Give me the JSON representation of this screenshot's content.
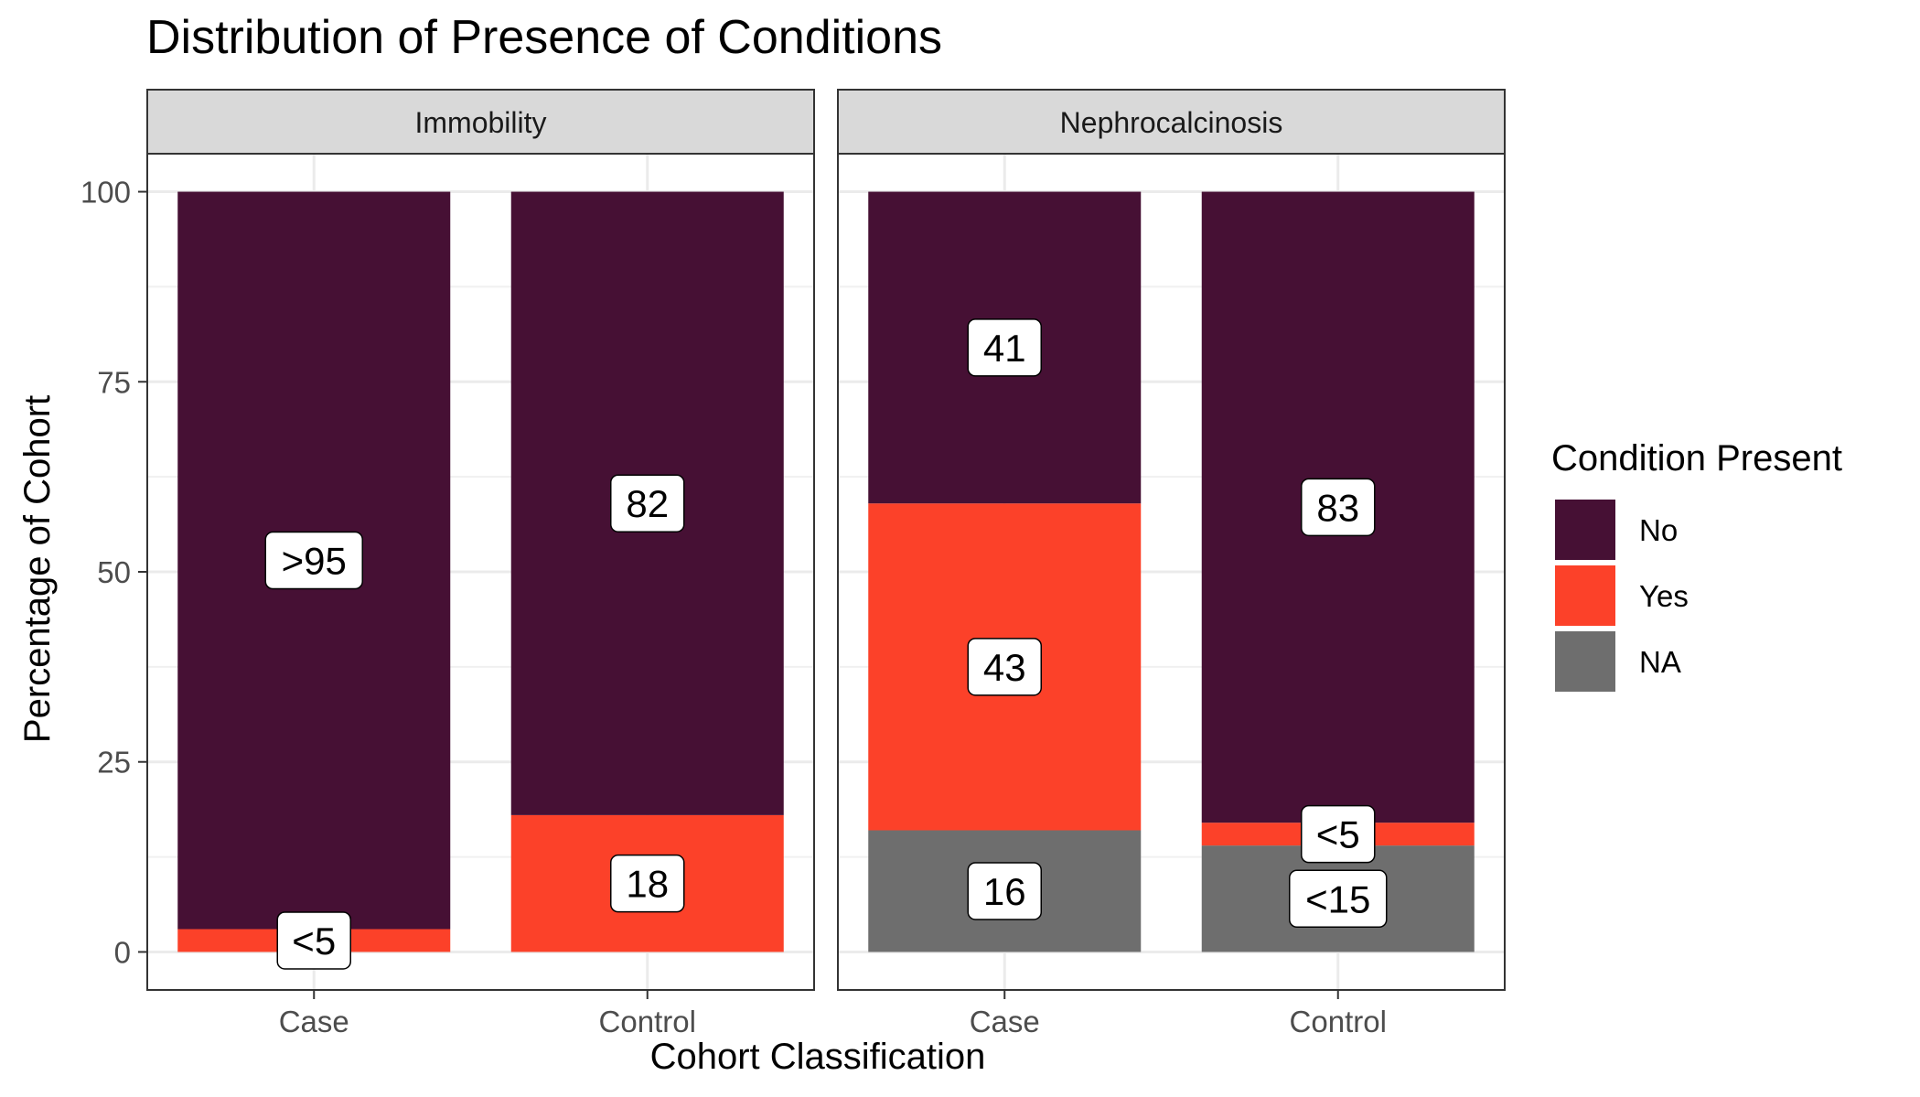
{
  "chart_data": {
    "type": "bar",
    "stacked": true,
    "title": "Distribution of Presence of Conditions",
    "xlabel": "Cohort Classification",
    "ylabel": "Percentage of Cohort",
    "ylim": [
      -5,
      105
    ],
    "yticks": [
      0,
      25,
      50,
      75,
      100
    ],
    "grid": true,
    "facets": [
      "Immobility",
      "Nephrocalcinosis"
    ],
    "categories": [
      "Case",
      "Control"
    ],
    "legend": {
      "title": "Condition Present",
      "position": "right",
      "entries": [
        {
          "label": "No",
          "color": "#461034"
        },
        {
          "label": "Yes",
          "color": "#FC4129"
        },
        {
          "label": "NA",
          "color": "#6E6E6E"
        }
      ]
    },
    "panels": [
      {
        "facet": "Immobility",
        "bars": [
          {
            "category": "Case",
            "segments": [
              {
                "group": "NA",
                "value": 0,
                "label": ""
              },
              {
                "group": "Yes",
                "value": 3,
                "label": "<5"
              },
              {
                "group": "No",
                "value": 97,
                "label": ">95"
              }
            ]
          },
          {
            "category": "Control",
            "segments": [
              {
                "group": "NA",
                "value": 0,
                "label": ""
              },
              {
                "group": "Yes",
                "value": 18,
                "label": "18"
              },
              {
                "group": "No",
                "value": 82,
                "label": "82"
              }
            ]
          }
        ]
      },
      {
        "facet": "Nephrocalcinosis",
        "bars": [
          {
            "category": "Case",
            "segments": [
              {
                "group": "NA",
                "value": 16,
                "label": "16"
              },
              {
                "group": "Yes",
                "value": 43,
                "label": "43"
              },
              {
                "group": "No",
                "value": 41,
                "label": "41"
              }
            ]
          },
          {
            "category": "Control",
            "segments": [
              {
                "group": "NA",
                "value": 14,
                "label": "<15"
              },
              {
                "group": "Yes",
                "value": 3,
                "label": "<5"
              },
              {
                "group": "No",
                "value": 83,
                "label": "83"
              }
            ]
          }
        ]
      }
    ]
  }
}
